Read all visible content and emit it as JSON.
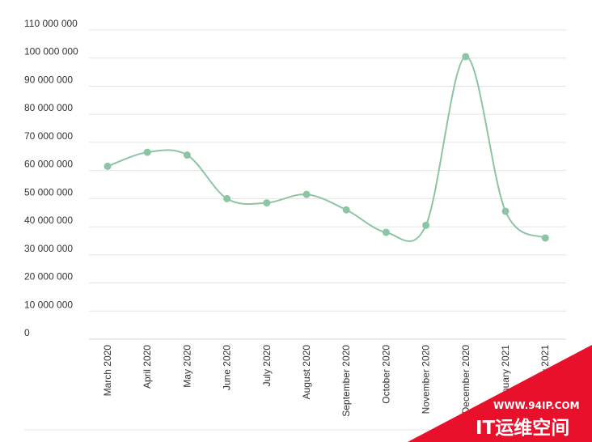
{
  "chart_data": {
    "type": "line",
    "categories": [
      "March 2020",
      "April 2020",
      "May 2020",
      "June 2020",
      "July 2020",
      "August 2020",
      "September 2020",
      "October 2020",
      "November 2020",
      "December 2020",
      "January 2021",
      "February 2021"
    ],
    "series": [
      {
        "values": [
          61500000,
          66500000,
          65500000,
          50000000,
          48500000,
          51500000,
          46000000,
          38000000,
          40500000,
          100500000,
          45500000,
          36000000
        ]
      }
    ],
    "yticks": [
      "0",
      "10 000 000",
      "20 000 000",
      "30 000 000",
      "40 000 000",
      "50 000 000",
      "60 000 000",
      "70 000 000",
      "80 000 000",
      "90 000 000",
      "100 000 000",
      "110 000 000"
    ],
    "ylim": [
      0,
      110000000
    ],
    "grid": true,
    "line_color": "#8cc5a3",
    "point_color": "#8cc5a3"
  },
  "watermark": {
    "url": "WWW.94IP.COM",
    "name": "IT运维空间",
    "color": "#e8102a"
  }
}
